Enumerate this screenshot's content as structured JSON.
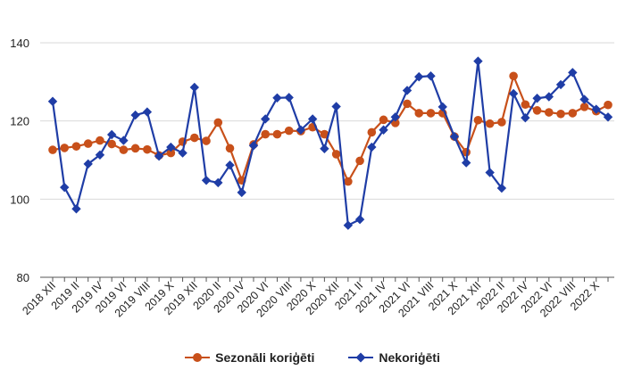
{
  "chart_data": {
    "type": "line",
    "title": "",
    "xlabel": "",
    "ylabel": "",
    "ylim": [
      80,
      140
    ],
    "yticks": [
      "80",
      "100",
      "120",
      "140"
    ],
    "grid": true,
    "legend_position": "bottom-center",
    "tick_labels": [
      "2018 XII",
      "2019 II",
      "2019 IV",
      "2019 VI",
      "2019 VIII",
      "2019 X",
      "2019 XII",
      "2020 II",
      "2020 IV",
      "2020 VI",
      "2020 VIII",
      "2020 X",
      "2020 XII",
      "2021 II",
      "2021 IV",
      "2021 VI",
      "2021 VIII",
      "2021 X",
      "2021 XII",
      "2022 II",
      "2022 IV",
      "2022 VI",
      "2022 VIII",
      "2022 X"
    ],
    "series": [
      {
        "name": "Sezonāli koriģēti",
        "color": "#c8501a",
        "marker": "circle",
        "values": [
          112.6,
          113.1,
          113.5,
          114.2,
          115.0,
          114.1,
          112.6,
          113.0,
          112.7,
          111.2,
          111.8,
          114.7,
          115.7,
          114.9,
          119.6,
          113.0,
          104.8,
          114.0,
          116.6,
          116.6,
          117.5,
          117.4,
          118.4,
          116.6,
          111.5,
          104.5,
          109.8,
          117.1,
          120.3,
          119.5,
          124.4,
          122.0,
          122.0,
          122.0,
          116.0,
          112.0,
          120.2,
          119.3,
          119.7,
          131.5,
          124.2,
          122.7,
          122.2,
          121.8,
          122.0,
          123.6,
          122.5,
          124.1
        ]
      },
      {
        "name": "Nekoriģēti",
        "color": "#1f3da6",
        "marker": "diamond",
        "values": [
          125.0,
          103.0,
          97.5,
          109.0,
          111.3,
          116.5,
          115.0,
          121.5,
          122.3,
          111.0,
          113.3,
          111.8,
          128.6,
          104.8,
          104.2,
          108.7,
          101.7,
          113.7,
          120.5,
          125.9,
          126.0,
          117.7,
          120.5,
          112.9,
          123.7,
          93.3,
          94.8,
          113.3,
          117.7,
          121.0,
          127.8,
          131.3,
          131.5,
          123.6,
          116.0,
          109.3,
          135.3,
          106.8,
          102.8,
          127.0,
          120.8,
          125.8,
          126.2,
          129.3,
          132.4,
          125.5,
          123.0,
          121.0
        ]
      }
    ]
  }
}
